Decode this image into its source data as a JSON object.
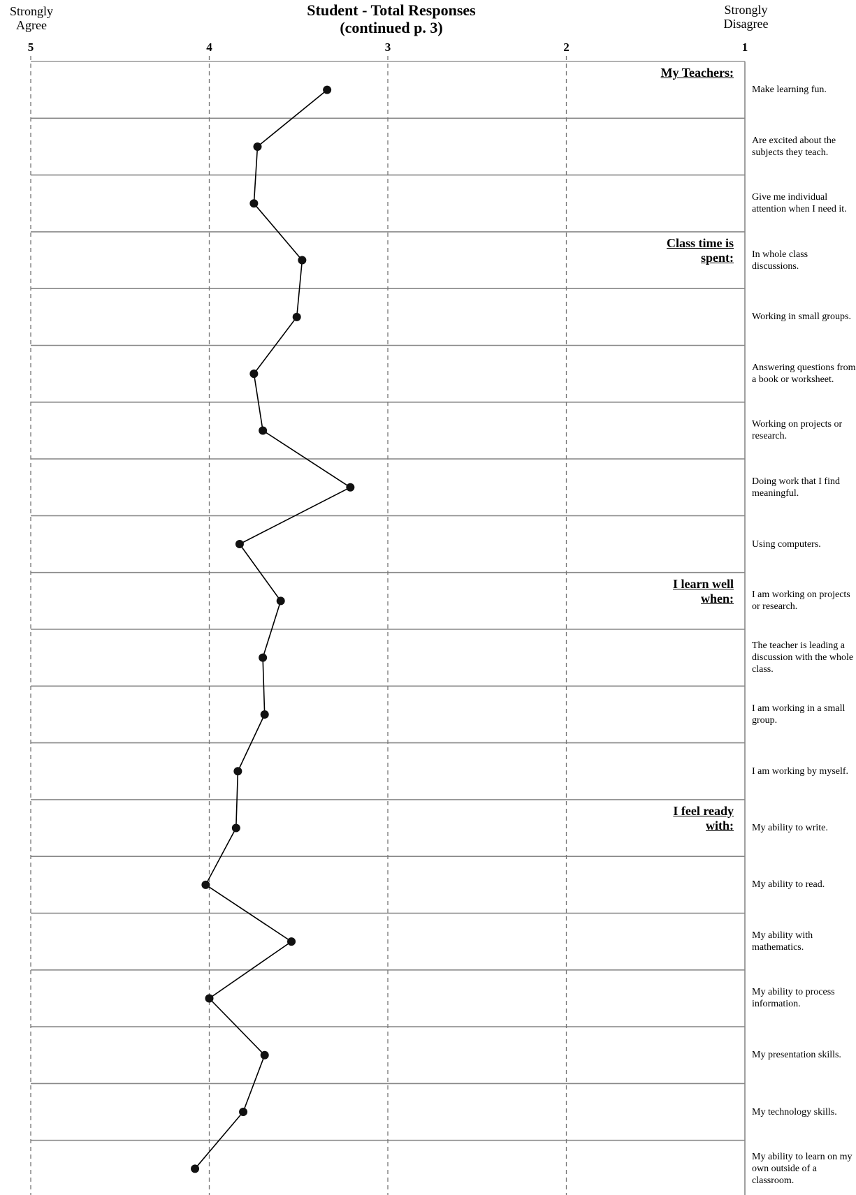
{
  "chart_data": {
    "type": "line",
    "title": "Student - Total Responses",
    "subtitle": "(continued p. 3)",
    "left_anchor": "Strongly Agree",
    "right_anchor": "Strongly Disagree",
    "x_ticks": [
      "5",
      "4",
      "3",
      "2",
      "1"
    ],
    "xlim": [
      5,
      1
    ],
    "grid": true,
    "sections": [
      {
        "label": "My Teachers:",
        "start_row": 0
      },
      {
        "label": "Class time is spent:",
        "start_row": 3
      },
      {
        "label": "I learn well when:",
        "start_row": 9
      },
      {
        "label": "I feel ready with:",
        "start_row": 13
      }
    ],
    "items": [
      {
        "statement": "Make learning fun.",
        "value": 3.34
      },
      {
        "statement": "Are excited about the subjects they teach.",
        "value": 3.73
      },
      {
        "statement": "Give me individual attention when I need it.",
        "value": 3.75
      },
      {
        "statement": "In whole class discussions.",
        "value": 3.48
      },
      {
        "statement": "Working in small groups.",
        "value": 3.51
      },
      {
        "statement": "Answering questions from a book or worksheet.",
        "value": 3.75
      },
      {
        "statement": "Working on projects or research.",
        "value": 3.7
      },
      {
        "statement": "Doing work that I find meaningful.",
        "value": 3.21
      },
      {
        "statement": "Using computers.",
        "value": 3.83
      },
      {
        "statement": "I am working on projects or research.",
        "value": 3.6
      },
      {
        "statement": "The teacher is leading a discussion with the whole class.",
        "value": 3.7
      },
      {
        "statement": "I am working in a small group.",
        "value": 3.69
      },
      {
        "statement": "I am working by myself.",
        "value": 3.84
      },
      {
        "statement": "My ability to write.",
        "value": 3.85
      },
      {
        "statement": "My ability to read.",
        "value": 4.02
      },
      {
        "statement": "My ability with mathematics.",
        "value": 3.54
      },
      {
        "statement": "My ability to process information.",
        "value": 4.0
      },
      {
        "statement": "My presentation skills.",
        "value": 3.69
      },
      {
        "statement": "My technology skills.",
        "value": 3.81
      },
      {
        "statement": "My ability to learn on my own outside of a classroom.",
        "value": 4.08
      }
    ]
  }
}
